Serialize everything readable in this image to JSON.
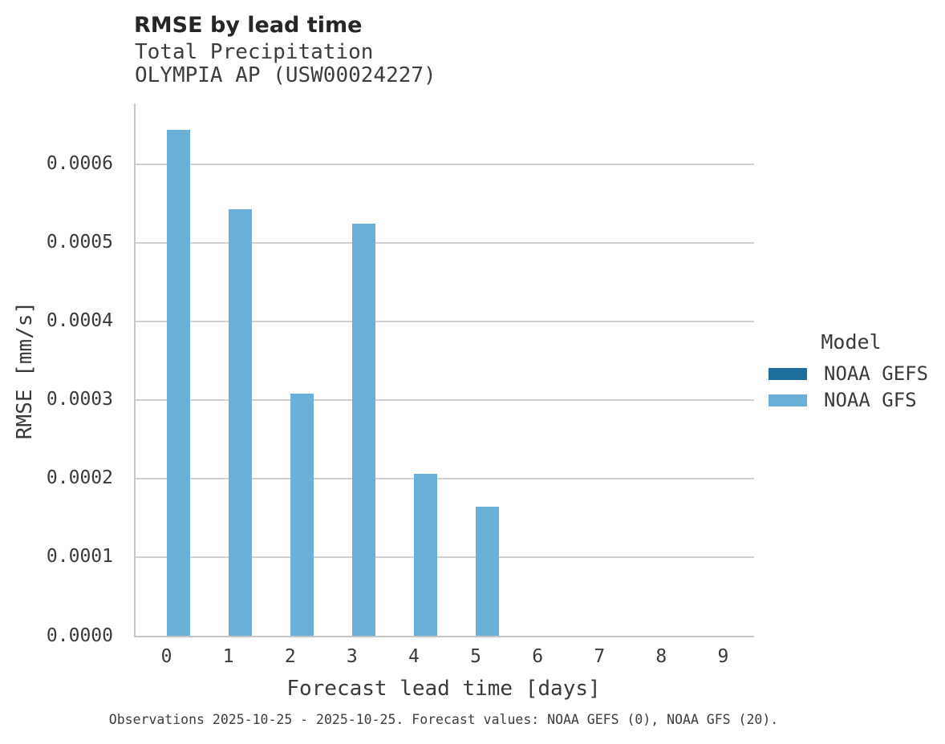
{
  "header": {
    "title": "RMSE by lead time",
    "subtitle_line1": "Total Precipitation",
    "subtitle_line2": "OLYMPIA AP (USW00024227)"
  },
  "axes": {
    "x_label": "Forecast lead time [days]",
    "y_label": "RMSE [mm/s]"
  },
  "legend": {
    "title": "Model",
    "entries": [
      {
        "label": "NOAA GEFS",
        "color": "#1d6e9c"
      },
      {
        "label": "NOAA GFS",
        "color": "#69afd8"
      }
    ]
  },
  "caption": "Observations 2025-10-25 - 2025-10-25. Forecast values: NOAA GEFS (0), NOAA GFS (20).",
  "colors": {
    "noaa_gefs": "#1d6e9c",
    "noaa_gfs": "#69afd8",
    "gridline": "#d2d2d2",
    "spine": "#c6c6c6",
    "title_text": "#262626",
    "body_text": "#3a3a3a"
  },
  "chart_data": {
    "type": "bar",
    "title": "RMSE by lead time",
    "subtitle": [
      "Total Precipitation",
      "OLYMPIA AP (USW00024227)"
    ],
    "xlabel": "Forecast lead time [days]",
    "ylabel": "RMSE [mm/s]",
    "categories": [
      "0",
      "1",
      "2",
      "3",
      "4",
      "5",
      "6",
      "7",
      "8",
      "9"
    ],
    "series": [
      {
        "name": "NOAA GEFS",
        "color": "#1d6e9c",
        "values": [
          null,
          null,
          null,
          null,
          null,
          null,
          null,
          null,
          null,
          null
        ]
      },
      {
        "name": "NOAA GFS",
        "color": "#69afd8",
        "values": [
          0.000643,
          0.000542,
          0.000308,
          0.000524,
          0.000206,
          0.000164,
          null,
          null,
          null,
          null
        ]
      }
    ],
    "ylim": [
      0,
      0.000677
    ],
    "yticks": [
      {
        "value": 0.0,
        "label": "0.0000"
      },
      {
        "value": 0.0001,
        "label": "0.0001"
      },
      {
        "value": 0.0002,
        "label": "0.0002"
      },
      {
        "value": 0.0003,
        "label": "0.0003"
      },
      {
        "value": 0.0004,
        "label": "0.0004"
      },
      {
        "value": 0.0005,
        "label": "0.0005"
      },
      {
        "value": 0.0006,
        "label": "0.0006"
      }
    ],
    "grid": "horizontal",
    "legend_position": "right",
    "legend_title": "Model"
  }
}
